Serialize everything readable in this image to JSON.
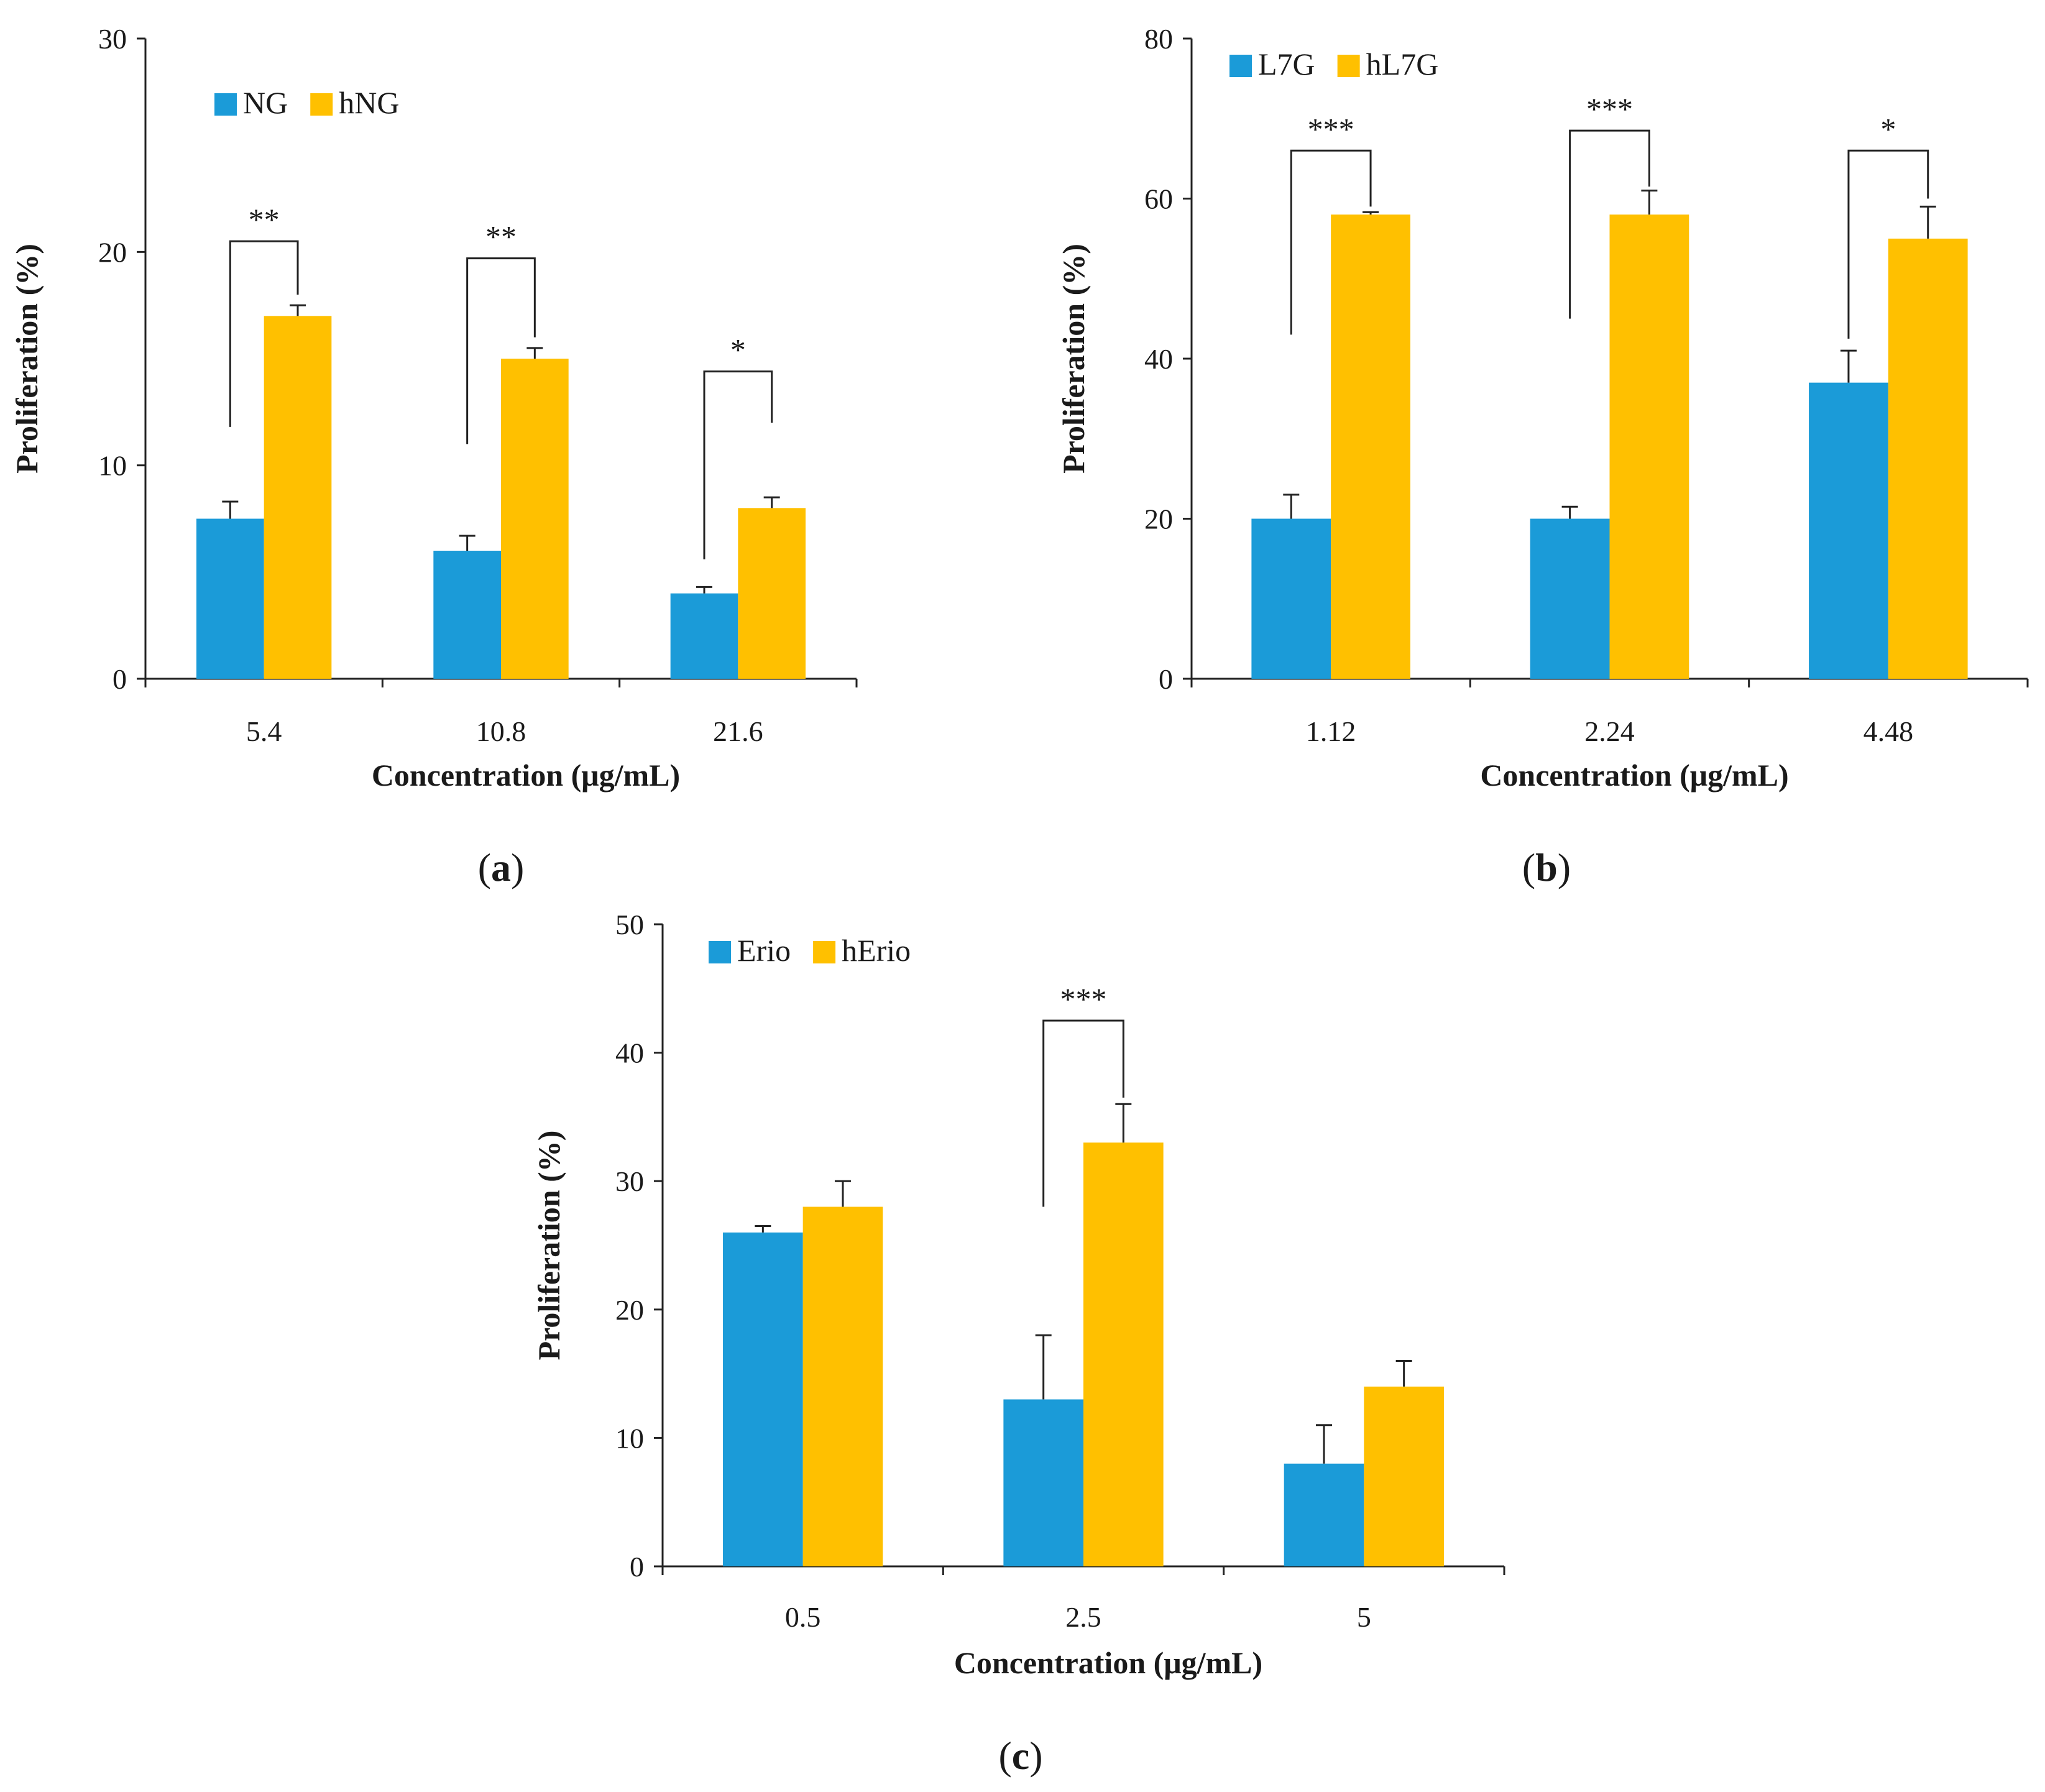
{
  "colors": {
    "blue": "#1b9bd8",
    "yellow": "#ffc000",
    "axis": "#222222"
  },
  "chart_data": [
    {
      "id": "a",
      "type": "bar",
      "panel_label": "a",
      "xlabel": "Concentration (μg/mL)",
      "ylabel": "Proliferation (%)",
      "ylim": [
        0,
        30
      ],
      "yticks": [
        0,
        10,
        20,
        30
      ],
      "categories": [
        "5.4",
        "10.8",
        "21.6"
      ],
      "legend_position": "top-left",
      "series": [
        {
          "name": "NG",
          "color": "#1b9bd8",
          "values": [
            7.5,
            6.0,
            4.0
          ],
          "errors": [
            0.8,
            0.7,
            0.3
          ]
        },
        {
          "name": "hNG",
          "color": "#ffc000",
          "values": [
            17.0,
            15.0,
            8.0
          ],
          "errors": [
            0.5,
            0.5,
            0.5
          ]
        }
      ],
      "significance": [
        {
          "category": "5.4",
          "label": "**",
          "bracket_y": 20.5,
          "left_end": 11.8,
          "right_end": 18.0
        },
        {
          "category": "10.8",
          "label": "**",
          "bracket_y": 19.7,
          "left_end": 11.0,
          "right_end": 16.0
        },
        {
          "category": "21.6",
          "label": "*",
          "bracket_y": 14.4,
          "left_end": 5.6,
          "right_end": 12.0
        }
      ]
    },
    {
      "id": "b",
      "type": "bar",
      "panel_label": "b",
      "xlabel": "Concentration (μg/mL)",
      "ylabel": "Proliferation (%)",
      "ylim": [
        0,
        80
      ],
      "yticks": [
        0,
        20,
        40,
        60,
        80
      ],
      "categories": [
        "1.12",
        "2.24",
        "4.48"
      ],
      "legend_position": "top-left",
      "series": [
        {
          "name": "L7G",
          "color": "#1b9bd8",
          "values": [
            20.0,
            20.0,
            37.0
          ],
          "errors": [
            3.0,
            1.5,
            4.0
          ]
        },
        {
          "name": "hL7G",
          "color": "#ffc000",
          "values": [
            58.0,
            58.0,
            55.0
          ],
          "errors": [
            0.3,
            3.0,
            4.0
          ]
        }
      ],
      "significance": [
        {
          "category": "1.12",
          "label": "***",
          "bracket_y": 66.0,
          "left_end": 43.0,
          "right_end": 59.0
        },
        {
          "category": "2.24",
          "label": "***",
          "bracket_y": 68.5,
          "left_end": 45.0,
          "right_end": 61.5
        },
        {
          "category": "4.48",
          "label": "*",
          "bracket_y": 66.0,
          "left_end": 42.5,
          "right_end": 60.0
        }
      ]
    },
    {
      "id": "c",
      "type": "bar",
      "panel_label": "c",
      "xlabel": "Concentration (μg/mL)",
      "ylabel": "Proliferation (%)",
      "ylim": [
        0,
        50
      ],
      "yticks": [
        0,
        10,
        20,
        30,
        40,
        50
      ],
      "categories": [
        "0.5",
        "2.5",
        "5"
      ],
      "legend_position": "top-left",
      "series": [
        {
          "name": "Erio",
          "color": "#1b9bd8",
          "values": [
            26.0,
            13.0,
            8.0
          ],
          "errors": [
            0.5,
            5.0,
            3.0
          ]
        },
        {
          "name": "hErio",
          "color": "#ffc000",
          "values": [
            28.0,
            33.0,
            14.0
          ],
          "errors": [
            2.0,
            3.0,
            2.0
          ]
        }
      ],
      "significance": [
        {
          "category": "2.5",
          "label": "***",
          "bracket_y": 42.5,
          "left_end": 28.0,
          "right_end": 36.5
        }
      ]
    }
  ]
}
